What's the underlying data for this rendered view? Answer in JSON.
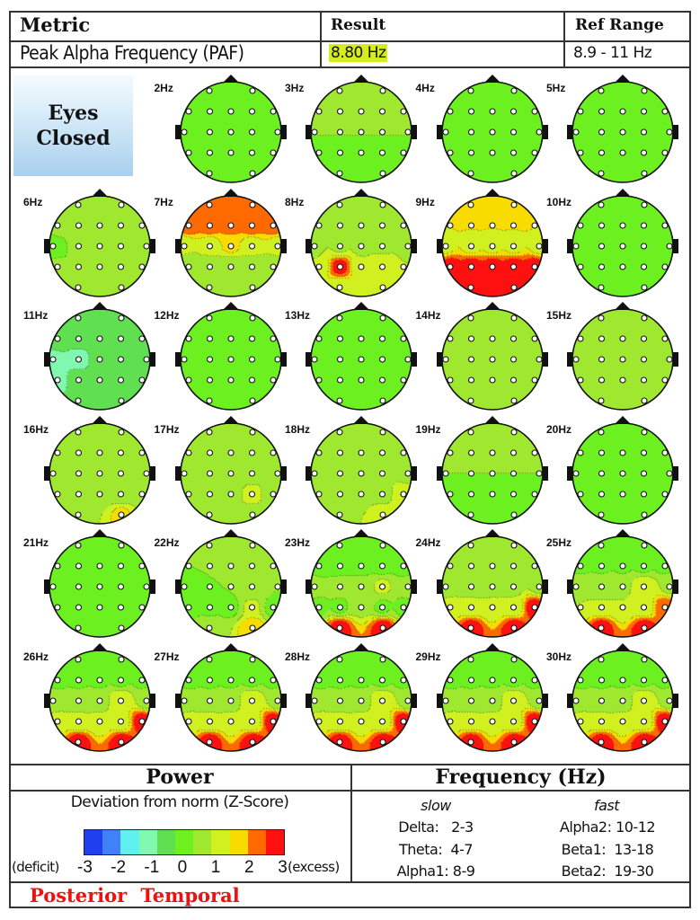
{
  "header": {
    "metric_label": "Metric",
    "result_label": "Result",
    "ref_range_label": "Ref Range",
    "metric_value": "Peak Alpha Frequency (PAF)",
    "result_value": "8.80 Hz",
    "ref_range_value": "8.9 - 11 Hz",
    "result_highlight": "#d7ec1e"
  },
  "condition": "Eyes Closed",
  "electrodes": [
    "Fp1",
    "Fp2",
    "F7",
    "F3",
    "Fz",
    "F4",
    "F8",
    "T3",
    "C3",
    "Cz",
    "C4",
    "T4",
    "T5",
    "P3",
    "Pz",
    "P4",
    "T6",
    "O1",
    "O2"
  ],
  "maps": [
    {
      "label": "2Hz",
      "zones": [
        0,
        0,
        0,
        0
      ],
      "spots": {}
    },
    {
      "label": "3Hz",
      "zones": [
        0.6,
        0.3,
        0.2,
        0.2
      ],
      "spots": {}
    },
    {
      "label": "4Hz",
      "zones": [
        0.2,
        0.1,
        0.1,
        0.1
      ],
      "spots": {}
    },
    {
      "label": "5Hz",
      "zones": [
        0.2,
        0,
        0,
        0.1
      ],
      "spots": {}
    },
    {
      "label": "6Hz",
      "zones": [
        0.8,
        0.4,
        0.4,
        0.6
      ],
      "spots": {
        "T3": -0.2,
        "T6": 0.9
      }
    },
    {
      "label": "7Hz",
      "zones": [
        2.4,
        1.2,
        0.3,
        0.7
      ],
      "spots": {
        "Cz": 1.6,
        "T3": 1.0
      }
    },
    {
      "label": "8Hz",
      "zones": [
        0.8,
        0.8,
        0.9,
        1.0
      ],
      "spots": {
        "P3": 2.9,
        "P4": 1.3
      }
    },
    {
      "label": "9Hz",
      "zones": [
        1.5,
        1.3,
        3,
        3
      ],
      "spots": {
        "Fp1": 2.0,
        "Fp2": 2.0
      }
    },
    {
      "label": "10Hz",
      "zones": [
        -0.1,
        -0.1,
        -0.1,
        -0.1
      ],
      "spots": {}
    },
    {
      "label": "11Hz",
      "zones": [
        -0.4,
        -0.4,
        -0.4,
        -0.3
      ],
      "spots": {
        "C3": -1.4,
        "T3": -1.1,
        "T5": -1.3
      }
    },
    {
      "label": "12Hz",
      "zones": [
        -0.2,
        -0.3,
        -0.3,
        -0.2
      ],
      "spots": {}
    },
    {
      "label": "13Hz",
      "zones": [
        0.3,
        0.1,
        0.1,
        0.2
      ],
      "spots": {}
    },
    {
      "label": "14Hz",
      "zones": [
        0.8,
        0.4,
        0.3,
        0.4
      ],
      "spots": {}
    },
    {
      "label": "15Hz",
      "zones": [
        0.8,
        0.5,
        0.4,
        0.5
      ],
      "spots": {}
    },
    {
      "label": "16Hz",
      "zones": [
        0.8,
        0.4,
        0.5,
        0.6
      ],
      "spots": {
        "O2": 1.6
      }
    },
    {
      "label": "17Hz",
      "zones": [
        0.6,
        0.4,
        0.4,
        0.6
      ],
      "spots": {
        "P4": 1.2
      }
    },
    {
      "label": "18Hz",
      "zones": [
        0.6,
        0.5,
        0.6,
        0.8
      ],
      "spots": {
        "T6": 1.4,
        "O2": 1.3
      }
    },
    {
      "label": "19Hz",
      "zones": [
        0.4,
        0.3,
        0.2,
        0.3
      ],
      "spots": {}
    },
    {
      "label": "20Hz",
      "zones": [
        0.1,
        0.1,
        0,
        0.1
      ],
      "spots": {}
    },
    {
      "label": "21Hz",
      "zones": [
        0.1,
        0,
        0,
        0.1
      ],
      "spots": {}
    },
    {
      "label": "22Hz",
      "zones": [
        0.3,
        0.3,
        0.2,
        0.6
      ],
      "spots": {
        "O2": 1.9,
        "P4": 1.0
      }
    },
    {
      "label": "23Hz",
      "zones": [
        0.1,
        0.5,
        0.2,
        3
      ],
      "spots": {
        "C4": 1.0,
        "Pz": 0.8
      }
    },
    {
      "label": "24Hz",
      "zones": [
        0.3,
        0.7,
        1.0,
        3
      ],
      "spots": {
        "T6": 3
      }
    },
    {
      "label": "25Hz",
      "zones": [
        0.2,
        0.8,
        0.9,
        3
      ],
      "spots": {
        "T6": 2.5,
        "C4": 1.4
      }
    },
    {
      "label": "26Hz",
      "zones": [
        0.2,
        0.6,
        1.0,
        3
      ],
      "spots": {
        "T6": 3,
        "C4": 1.5
      }
    },
    {
      "label": "27Hz",
      "zones": [
        0.2,
        0.6,
        1.0,
        3
      ],
      "spots": {
        "T6": 3,
        "C4": 1.5
      }
    },
    {
      "label": "28Hz",
      "zones": [
        0.2,
        0.6,
        1.0,
        3
      ],
      "spots": {
        "T6": 3,
        "C4": 1.5
      }
    },
    {
      "label": "29Hz",
      "zones": [
        0.2,
        0.6,
        1.0,
        3
      ],
      "spots": {
        "T6": 3,
        "C4": 1.5
      }
    },
    {
      "label": "30Hz",
      "zones": [
        0.2,
        0.6,
        1.0,
        3
      ],
      "spots": {
        "T6": 3,
        "C4": 1.5
      }
    }
  ],
  "power": {
    "title": "Power",
    "subtitle": "Deviation from norm (Z-Score)",
    "deficit_label": "(deficit)",
    "excess_label": "(excess)",
    "ticks": [
      "-3",
      "-2",
      "-1",
      "0",
      "1",
      "2",
      "3"
    ],
    "scale_colors": [
      "#2040f0",
      "#4080f8",
      "#60f0f0",
      "#80f8b0",
      "#60e050",
      "#6cf020",
      "#a0e830",
      "#d0f020",
      "#f8dc00",
      "#ff6a00",
      "#ff1010"
    ]
  },
  "frequency": {
    "title": "Frequency (Hz)",
    "slow_label": "slow",
    "fast_label": "fast",
    "slow": [
      "Delta:   2-3",
      "Theta:  4-7",
      "Alpha1: 8-9"
    ],
    "fast": [
      "Alpha2: 10-12",
      "Beta1:  13-18",
      "Beta2:  19-30"
    ]
  },
  "footer": "Posterior Temporal"
}
